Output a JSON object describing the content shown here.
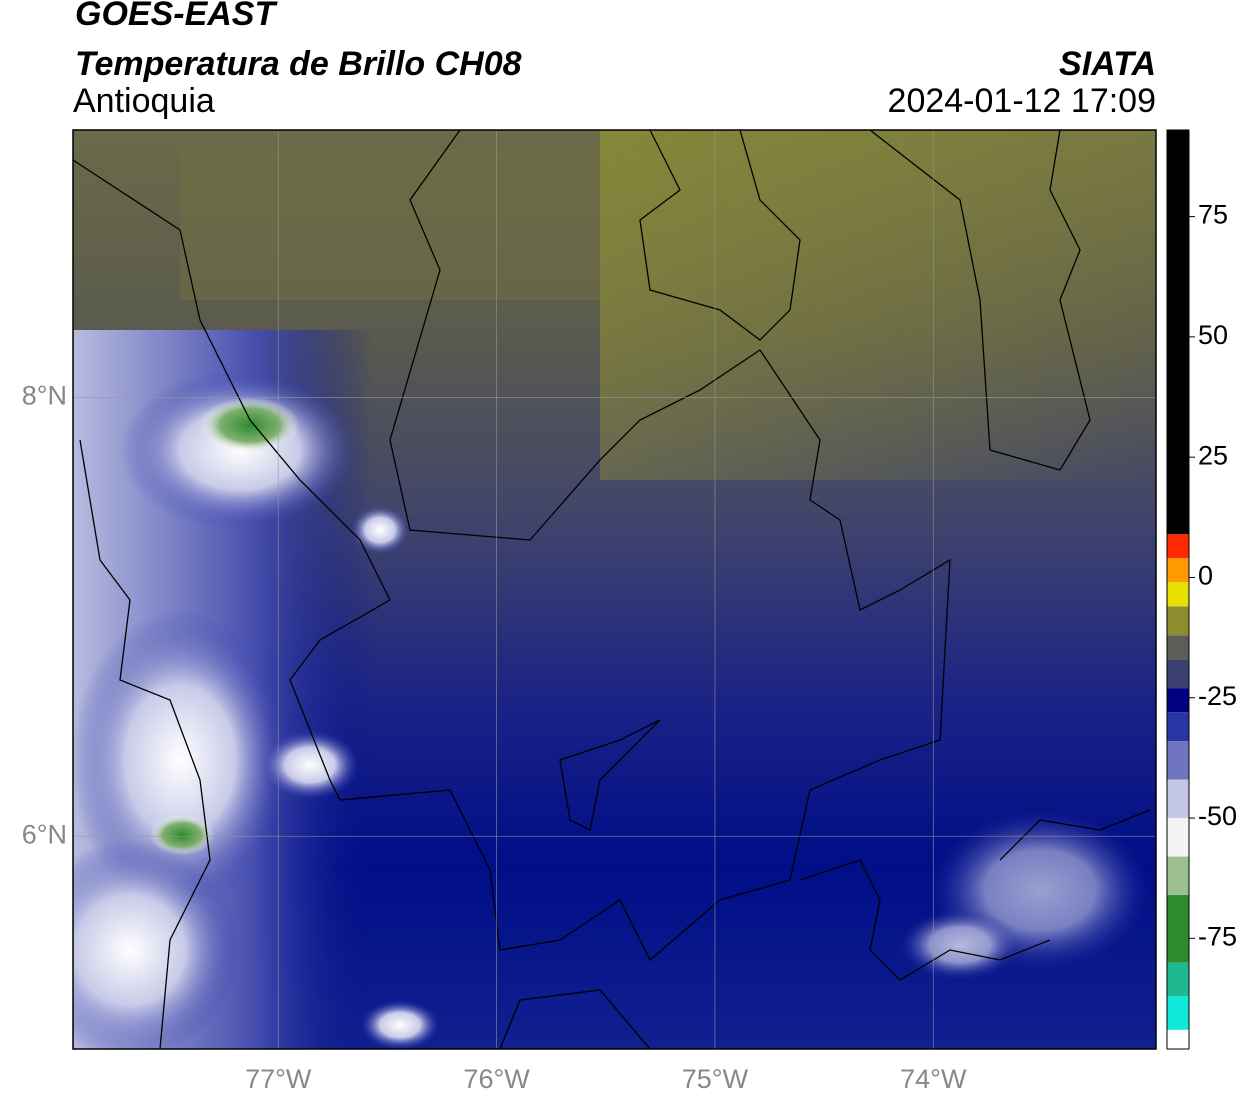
{
  "chart_data": {
    "type": "map",
    "title": "GOES-EAST",
    "subtitle": "Temperatura de Brillo CH08",
    "region": "Antioquia",
    "source": "SIATA",
    "datetime": "2024-01-12 17:09",
    "xlim": [
      -77.94,
      -72.98
    ],
    "ylim": [
      5.03,
      9.22
    ],
    "xticks": [
      {
        "value": -77,
        "label": "77°W"
      },
      {
        "value": -76,
        "label": "76°W"
      },
      {
        "value": -75,
        "label": "75°W"
      },
      {
        "value": -74,
        "label": "74°W"
      }
    ],
    "yticks": [
      {
        "value": 8,
        "label": "8°N"
      },
      {
        "value": 6,
        "label": "6°N"
      }
    ],
    "grid": true,
    "colorbar": {
      "lim": [
        -98,
        93
      ],
      "ticks": [
        75,
        50,
        25,
        0,
        -25,
        -50,
        -75
      ],
      "stops": [
        {
          "value": -98,
          "color": "#ffffff"
        },
        {
          "value": -94,
          "color": "#10e8d8"
        },
        {
          "value": -87,
          "color": "#20b890"
        },
        {
          "value": -80,
          "color": "#2e8b2e"
        },
        {
          "value": -66,
          "color": "#9cc090"
        },
        {
          "value": -58,
          "color": "#f4f4f4"
        },
        {
          "value": -50,
          "color": "#c4c6e6"
        },
        {
          "value": -42,
          "color": "#7075c2"
        },
        {
          "value": -34,
          "color": "#2a35a5"
        },
        {
          "value": -28,
          "color": "#000080"
        },
        {
          "value": -23,
          "color": "#3c4070"
        },
        {
          "value": -17,
          "color": "#5c5c58"
        },
        {
          "value": -12,
          "color": "#8c8c30"
        },
        {
          "value": -6,
          "color": "#e8e000"
        },
        {
          "value": -1,
          "color": "#ff9a00"
        },
        {
          "value": 4,
          "color": "#ff2a00"
        },
        {
          "value": 9,
          "color": "#000000"
        }
      ]
    }
  }
}
